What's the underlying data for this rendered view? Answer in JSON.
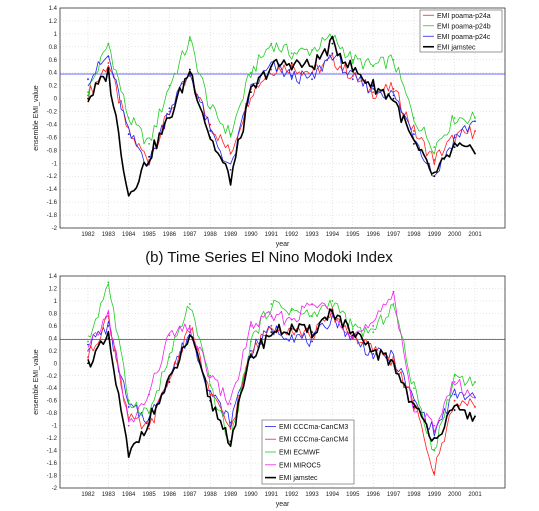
{
  "figure_title": "(b) Time Series El Nino Modoki Index",
  "chart_data": [
    {
      "type": "line",
      "xlabel": "year",
      "ylabel": "ensemble EMI_value",
      "ylim": [
        -2,
        1.4
      ],
      "yticks": [
        -2,
        -1.8,
        -1.6,
        -1.4,
        -1.2,
        -1,
        -0.8,
        -0.6,
        -0.4,
        -0.2,
        0,
        0.2,
        0.4,
        0.6,
        0.8,
        1,
        1.2,
        1.4
      ],
      "xticks": [
        "1982",
        "1983",
        "1984",
        "1985",
        "1986",
        "1987",
        "1988",
        "1989",
        "1990",
        "1991",
        "1992",
        "1993",
        "1994",
        "1995",
        "1996",
        "1997",
        "1998",
        "1999",
        "2000",
        "2001"
      ],
      "grid": true,
      "legend_position": "top-right",
      "reference_line": 0.38,
      "x": [
        "1982",
        "1983",
        "1984",
        "1985",
        "1986",
        "1987",
        "1988",
        "1989",
        "1990",
        "1991",
        "1992",
        "1993",
        "1994",
        "1995",
        "1996",
        "1997",
        "1998",
        "1999",
        "2000",
        "2001"
      ],
      "series": [
        {
          "name": "EMI poama-p24a",
          "color": "#ff2020",
          "width": 0.8,
          "values": [
            0.05,
            0.55,
            -0.55,
            -0.95,
            -0.2,
            0.35,
            -0.4,
            -0.85,
            0.1,
            0.45,
            0.5,
            0.4,
            0.6,
            0.35,
            0.1,
            0.15,
            -0.5,
            -0.95,
            -0.6,
            -0.5
          ]
        },
        {
          "name": "EMI poama-p24b",
          "color": "#22cc22",
          "width": 0.8,
          "values": [
            0.1,
            0.85,
            -0.3,
            -0.7,
            0.2,
            0.9,
            -0.15,
            -0.55,
            0.4,
            0.85,
            0.7,
            0.75,
            0.95,
            0.6,
            0.5,
            0.6,
            -0.3,
            -0.75,
            -0.3,
            -0.3
          ]
        },
        {
          "name": "EMI poama-p24c",
          "color": "#2222ee",
          "width": 0.8,
          "values": [
            0.3,
            0.65,
            -0.55,
            -1.0,
            -0.15,
            0.4,
            -0.5,
            -1.1,
            0.15,
            0.5,
            0.35,
            0.3,
            0.7,
            0.3,
            0.15,
            0.05,
            -0.55,
            -1.2,
            -0.6,
            -0.35
          ]
        },
        {
          "name": "EMI jamstec",
          "color": "#000000",
          "width": 1.6,
          "values": [
            0.0,
            0.4,
            -1.5,
            -0.9,
            -0.3,
            0.45,
            -0.6,
            -1.25,
            0.1,
            0.5,
            0.55,
            0.5,
            0.85,
            0.45,
            0.2,
            0.0,
            -0.7,
            -1.2,
            -0.75,
            -0.85
          ]
        }
      ]
    },
    {
      "type": "line",
      "xlabel": "year",
      "ylabel": "ensemble EMI_value",
      "ylim": [
        -2,
        1.4
      ],
      "yticks": [
        -2,
        -1.8,
        -1.6,
        -1.4,
        -1.2,
        -1,
        -0.8,
        -0.6,
        -0.4,
        -0.2,
        0,
        0.2,
        0.4,
        0.6,
        0.8,
        1,
        1.2,
        1.4
      ],
      "xticks": [
        "1982",
        "1983",
        "1984",
        "1985",
        "1986",
        "1987",
        "1988",
        "1989",
        "1990",
        "1991",
        "1992",
        "1993",
        "1994",
        "1995",
        "1996",
        "1997",
        "1998",
        "1999",
        "2000",
        "2001"
      ],
      "grid": true,
      "legend_position": "bottom-center",
      "reference_line": 0.38,
      "x": [
        "1982",
        "1983",
        "1984",
        "1985",
        "1986",
        "1987",
        "1988",
        "1989",
        "1990",
        "1991",
        "1992",
        "1993",
        "1994",
        "1995",
        "1996",
        "1997",
        "1998",
        "1999",
        "2000",
        "2001"
      ],
      "series": [
        {
          "name": "EMI CCCma-CanCM3",
          "color": "#2222ee",
          "width": 0.8,
          "values": [
            0.3,
            0.6,
            -0.7,
            -0.9,
            -0.2,
            0.5,
            -0.45,
            -0.95,
            0.2,
            0.55,
            0.45,
            0.35,
            0.75,
            0.4,
            0.15,
            0.1,
            -0.6,
            -1.1,
            -0.5,
            -0.55
          ]
        },
        {
          "name": "EMI CCCma-CanCM4",
          "color": "#ff2020",
          "width": 0.8,
          "values": [
            0.1,
            0.75,
            -0.9,
            -1.05,
            -0.25,
            0.6,
            -0.5,
            -1.05,
            0.15,
            0.6,
            0.55,
            0.45,
            0.8,
            0.45,
            0.2,
            0.05,
            -0.65,
            -1.75,
            -0.6,
            -0.7
          ]
        },
        {
          "name": "EMI ECMWF",
          "color": "#22cc22",
          "width": 0.8,
          "values": [
            0.35,
            1.3,
            -0.6,
            -0.8,
            0.1,
            0.95,
            -0.35,
            -1.3,
            0.35,
            0.95,
            0.85,
            0.75,
            1.0,
            0.55,
            0.5,
            0.95,
            -0.4,
            -1.4,
            -0.2,
            -0.3
          ]
        },
        {
          "name": "EMI MIROC5",
          "color": "#ee22ee",
          "width": 0.8,
          "values": [
            0.2,
            0.8,
            -1.0,
            -0.5,
            0.45,
            0.55,
            -0.2,
            -0.65,
            0.6,
            0.75,
            0.7,
            0.95,
            0.85,
            0.45,
            0.6,
            1.15,
            -0.75,
            -1.0,
            -0.3,
            -0.55
          ]
        },
        {
          "name": "EMI jamstec",
          "color": "#000000",
          "width": 1.6,
          "values": [
            0.0,
            0.4,
            -1.5,
            -0.9,
            -0.3,
            0.45,
            -0.6,
            -1.25,
            0.1,
            0.5,
            0.55,
            0.5,
            0.85,
            0.45,
            0.2,
            0.0,
            -0.7,
            -1.2,
            -0.75,
            -0.85
          ]
        }
      ]
    }
  ]
}
